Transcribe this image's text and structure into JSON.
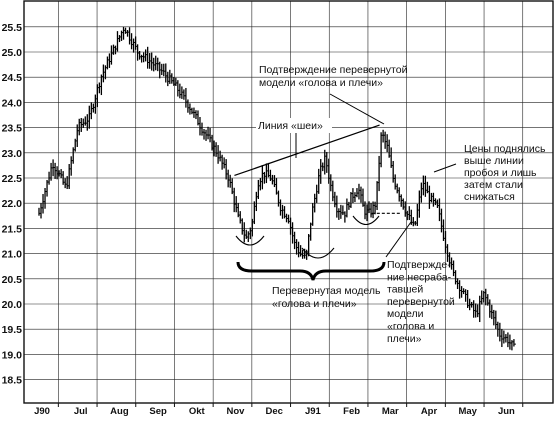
{
  "chart_data": {
    "type": "bar",
    "style": "OHLC price bars (monochrome)",
    "x_tick_labels": [
      "J90",
      "Jul",
      "Aug",
      "Sep",
      "Okt",
      "Nov",
      "Dec",
      "J91",
      "Feb",
      "Mar",
      "Apr",
      "May",
      "Jun"
    ],
    "y_tick_labels": [
      "25.5",
      "25.0",
      "24.5",
      "24.0",
      "23.5",
      "23.0",
      "22.5",
      "22.0",
      "21.5",
      "21.0",
      "20.5",
      "20.0",
      "19.5",
      "19.0",
      "18.5"
    ],
    "ylim": [
      18.1,
      25.75
    ],
    "grid": true,
    "series": [
      {
        "x": [
          0,
          0.35,
          0.7,
          1.0,
          1.3,
          1.6,
          1.9,
          2.2,
          2.55,
          2.9,
          3.2,
          3.55,
          3.9,
          4.2,
          4.6,
          4.9,
          5.15,
          5.35,
          5.5,
          5.65,
          5.8,
          6.0,
          6.25,
          6.45,
          6.6,
          6.75,
          6.9,
          7.05,
          7.25,
          7.4,
          7.55,
          7.7,
          7.9,
          8.05,
          8.25,
          8.4,
          8.55,
          8.7,
          8.85,
          9.0,
          9.15,
          9.3,
          9.5,
          9.7,
          9.9,
          10.1,
          10.3,
          10.5,
          10.7,
          10.9,
          11.1,
          11.3,
          11.5,
          11.7,
          11.9,
          12.1,
          12.3
        ],
        "y": [
          21.8,
          22.8,
          22.3,
          23.5,
          23.7,
          24.5,
          25.0,
          25.5,
          25.0,
          24.8,
          24.6,
          24.3,
          23.9,
          23.5,
          23.0,
          22.5,
          21.7,
          21.3,
          21.55,
          22.4,
          22.6,
          22.5,
          21.9,
          21.7,
          21.2,
          21.0,
          20.9,
          21.8,
          22.6,
          22.9,
          22.3,
          21.9,
          21.8,
          22.1,
          22.3,
          21.85,
          21.8,
          22.0,
          23.4,
          23.1,
          22.5,
          22.2,
          21.8,
          21.5,
          22.4,
          22.1,
          21.9,
          21.2,
          20.6,
          20.3,
          20.0,
          19.8,
          20.2,
          19.8,
          19.4,
          19.3,
          19.1
        ]
      }
    ],
    "neckline": {
      "x": [
        5.05,
        8.8
      ],
      "y": [
        22.55,
        23.55
      ]
    },
    "breakdown_line": {
      "x": [
        8.6,
        9.35
      ],
      "y": [
        21.8,
        21.8
      ]
    },
    "annotations": [
      {
        "id": "confirm",
        "lines": [
          "Подтверждение перевернутой",
          "модели «голова и плечи»"
        ]
      },
      {
        "id": "neck",
        "lines": [
          "Линия «шеи»"
        ]
      },
      {
        "id": "prices",
        "lines": [
          "Цены поднялись",
          "выше линии",
          "пробоя и лишь",
          "затем стали",
          "снижаться"
        ]
      },
      {
        "id": "model",
        "lines": [
          "Перевернутая модель",
          "«голова и плечи»"
        ]
      },
      {
        "id": "failed",
        "lines": [
          "Подтвержде-",
          "ние несраба-",
          "тавшей",
          "перевернутой",
          "модели",
          "«голова и",
          "плечи»"
        ]
      }
    ]
  }
}
